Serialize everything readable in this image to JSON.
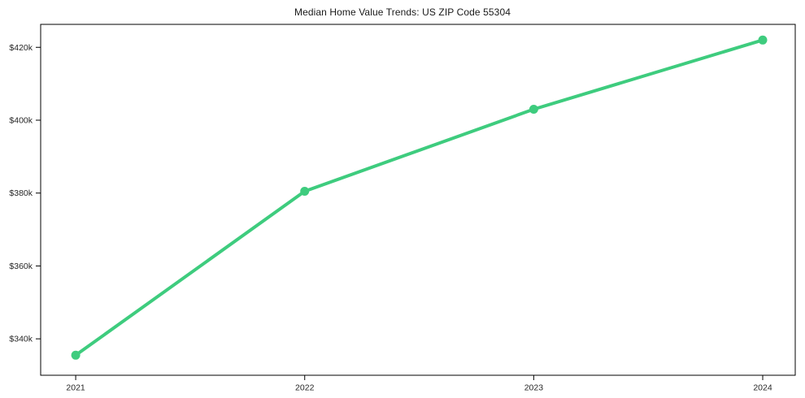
{
  "chart_data": {
    "type": "line",
    "title": "Median Home Value Trends: US ZIP Code 55304",
    "x": [
      2021,
      2022,
      2023,
      2024
    ],
    "x_tick_labels": [
      "2021",
      "2022",
      "2023",
      "2024"
    ],
    "series": [
      {
        "name": "median-home-value",
        "values": [
          335.5,
          380.5,
          403.0,
          422.0
        ],
        "unit": "USD thousands"
      }
    ],
    "y_tick_values": [
      340,
      360,
      380,
      400,
      420
    ],
    "y_tick_labels": [
      "$340k",
      "$360k",
      "$380k",
      "$400k",
      "$420k"
    ],
    "xlim": [
      2020.847,
      2024.142
    ],
    "ylim": [
      330.0,
      426.3
    ],
    "xlabel": "",
    "ylabel": "",
    "grid": false,
    "legend": false,
    "line_color": "#3ecc7e",
    "marker": "circle",
    "marker_color": "#3ecc7e",
    "axis_color": "#000000",
    "tick_label_color": "#262626",
    "background_color": "#ffffff"
  }
}
